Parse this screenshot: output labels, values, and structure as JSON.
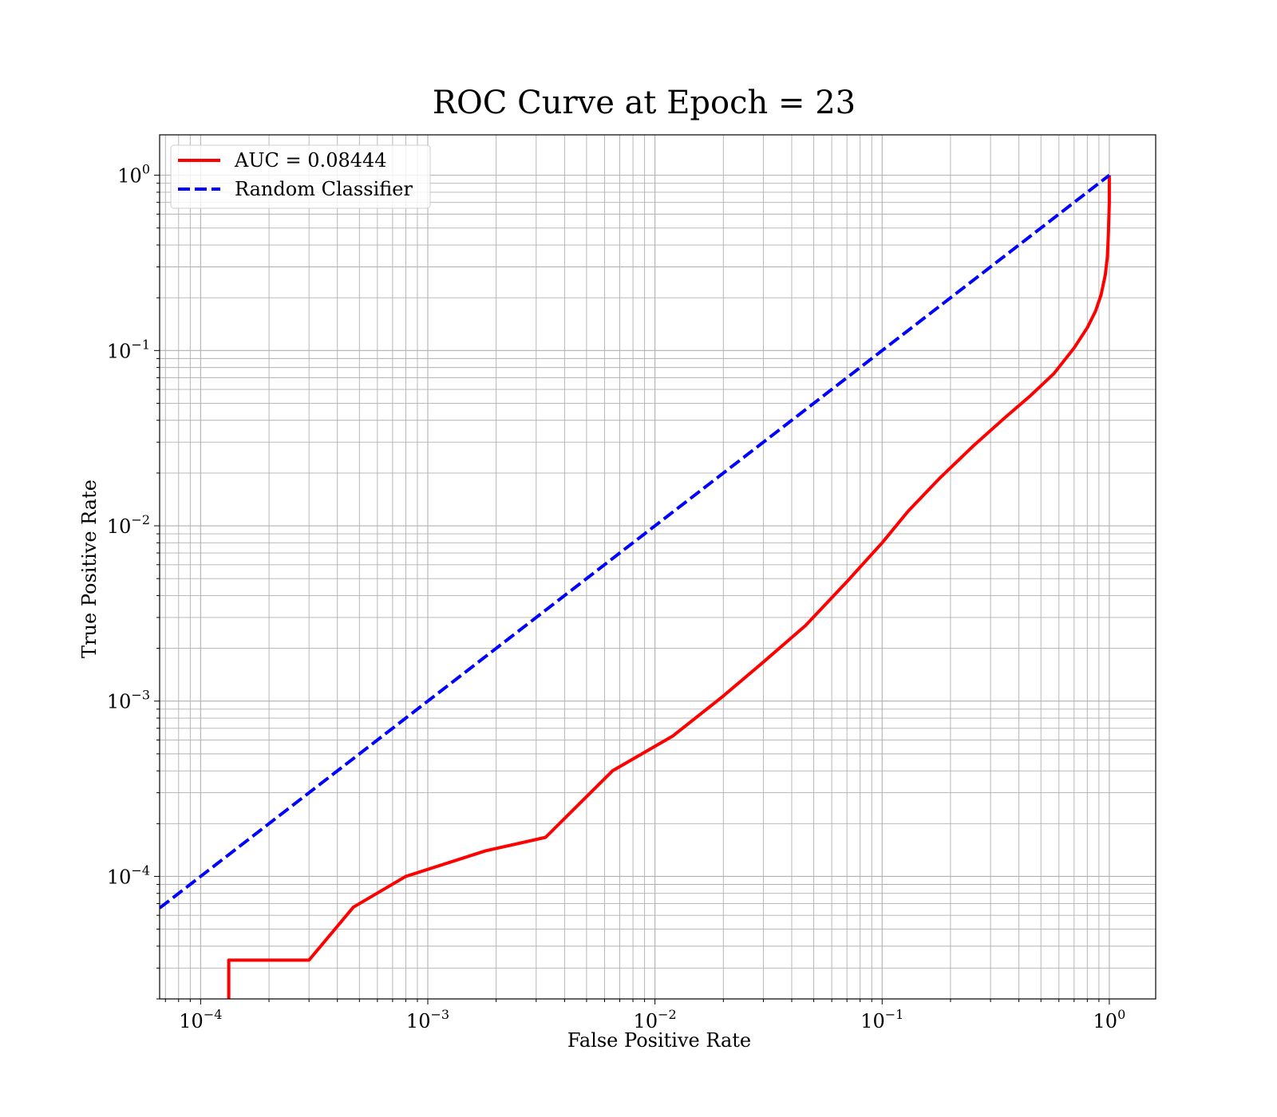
{
  "chart_data": {
    "type": "line",
    "title": "ROC Curve at Epoch = 23",
    "xlabel": "False Positive Rate",
    "ylabel": "True Positive Rate",
    "xscale": "log",
    "yscale": "log",
    "xlim": [
      6.6e-05,
      1.6
    ],
    "ylim": [
      2e-05,
      1.7
    ],
    "grid": true,
    "grid_minor": true,
    "legend_position": "upper-left",
    "x_ticks": [
      {
        "value": 0.0001,
        "base": "10",
        "exp": "−4"
      },
      {
        "value": 0.001,
        "base": "10",
        "exp": "−3"
      },
      {
        "value": 0.01,
        "base": "10",
        "exp": "−2"
      },
      {
        "value": 0.1,
        "base": "10",
        "exp": "−1"
      },
      {
        "value": 1,
        "base": "10",
        "exp": "0"
      }
    ],
    "y_ticks": [
      {
        "value": 0.0001,
        "base": "10",
        "exp": "−4"
      },
      {
        "value": 0.001,
        "base": "10",
        "exp": "−3"
      },
      {
        "value": 0.01,
        "base": "10",
        "exp": "−2"
      },
      {
        "value": 0.1,
        "base": "10",
        "exp": "−1"
      },
      {
        "value": 1,
        "base": "10",
        "exp": "0"
      }
    ],
    "series": [
      {
        "name": "AUC = 0.08444",
        "color": "#ff0000",
        "style": "solid",
        "x": [
          0.000133,
          0.000133,
          0.0003,
          0.00047,
          0.0008,
          0.0018,
          0.0033,
          0.0065,
          0.012,
          0.02,
          0.03,
          0.046,
          0.07,
          0.1,
          0.13,
          0.18,
          0.25,
          0.35,
          0.45,
          0.57,
          0.7,
          0.8,
          0.87,
          0.92,
          0.96,
          0.98,
          0.99,
          1.0,
          1.0
        ],
        "y": [
          2e-05,
          3.33e-05,
          3.33e-05,
          6.67e-05,
          0.0001,
          0.00014,
          0.000167,
          0.0004,
          0.000633,
          0.00107,
          0.00167,
          0.0027,
          0.0048,
          0.008,
          0.0121,
          0.0188,
          0.0283,
          0.0418,
          0.0553,
          0.0738,
          0.1035,
          0.135,
          0.168,
          0.208,
          0.27,
          0.34,
          0.45,
          0.7,
          1.0
        ]
      },
      {
        "name": "Random Classifier",
        "color": "#0000ff",
        "style": "dashed",
        "x": [
          6.6e-05,
          1.0
        ],
        "y": [
          6.6e-05,
          1.0
        ]
      }
    ]
  }
}
